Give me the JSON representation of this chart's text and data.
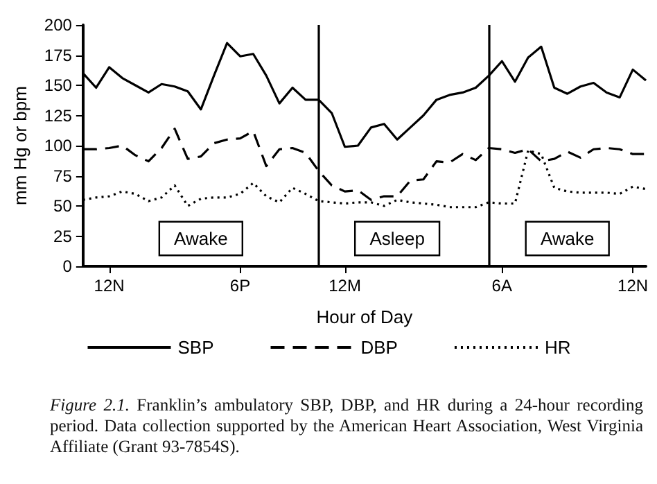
{
  "chart_data": {
    "type": "line",
    "xlabel": "Hour of Day",
    "ylabel": "mm Hg or bpm",
    "categories": [
      null,
      null,
      "12N",
      null,
      null,
      null,
      null,
      null,
      null,
      null,
      null,
      null,
      "6P",
      null,
      null,
      null,
      null,
      null,
      null,
      null,
      "12M",
      null,
      null,
      null,
      null,
      null,
      null,
      null,
      null,
      null,
      null,
      null,
      "6A",
      null,
      null,
      null,
      null,
      null,
      null,
      null,
      null,
      null,
      "12N",
      null
    ],
    "ylim": [
      0,
      200
    ],
    "yticks": [
      0,
      25,
      50,
      75,
      100,
      125,
      150,
      175,
      200
    ],
    "grid": false,
    "legend": "bottom",
    "marker": "none",
    "series": [
      {
        "name": "SBP",
        "color": "#000000",
        "line_style": "solid",
        "values": [
          160,
          148,
          165,
          156,
          150,
          144,
          151,
          149,
          145,
          130,
          158,
          185,
          174,
          176,
          158,
          135,
          148,
          138,
          138,
          127,
          99,
          100,
          115,
          118,
          105,
          115,
          125,
          138,
          142,
          144,
          148,
          158,
          170,
          153,
          173,
          182,
          148,
          143,
          149,
          152,
          144,
          140,
          163,
          154
        ]
      },
      {
        "name": "DBP",
        "color": "#000000",
        "line_style": "dashed",
        "values": [
          97,
          97,
          98,
          100,
          92,
          87,
          98,
          114,
          89,
          91,
          102,
          105,
          106,
          112,
          83,
          97,
          98,
          94,
          79,
          67,
          62,
          63,
          55,
          58,
          58,
          71,
          72,
          87,
          86,
          93,
          88,
          98,
          97,
          94,
          97,
          87,
          89,
          95,
          90,
          97,
          98,
          97,
          93,
          93
        ]
      },
      {
        "name": "HR",
        "color": "#000000",
        "line_style": "dotted",
        "values": [
          55,
          57,
          58,
          62,
          60,
          54,
          57,
          67,
          50,
          56,
          57,
          57,
          60,
          69,
          58,
          53,
          65,
          60,
          54,
          53,
          52,
          53,
          53,
          50,
          55,
          53,
          52,
          51,
          49,
          49,
          49,
          53,
          52,
          52,
          96,
          93,
          65,
          62,
          61,
          61,
          61,
          60,
          66,
          64
        ]
      }
    ],
    "annotations": [
      "Awake",
      "Asleep",
      "Awake",
      "Figure 2.1. Franklin’s ambulatory SBP, DBP, and HR during a 24-hour recording period. Data collection supported by the American Heart Association, West Virginia Affiliate (Grant 93-7854S)."
    ]
  }
}
